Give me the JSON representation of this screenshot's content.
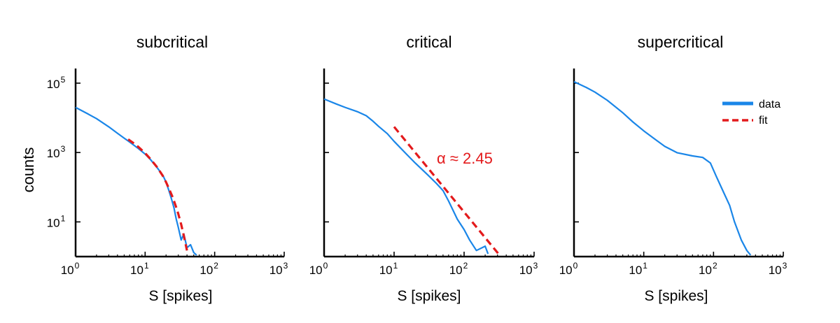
{
  "chart_data": [
    {
      "type": "line",
      "title": "subcritical",
      "xlabel": "S [spikes]",
      "ylabel": "counts",
      "xscale": "log",
      "yscale": "log",
      "xlim": [
        1,
        1000
      ],
      "ylim": [
        1,
        200000
      ],
      "xticks": [
        1,
        10,
        100,
        1000
      ],
      "yticks": [
        10,
        1000,
        100000
      ],
      "grid": false,
      "legend": "none",
      "series": [
        {
          "color": "#1a86e8",
          "style": "solid",
          "x": [
            1,
            1.5,
            2,
            3,
            4,
            5,
            6,
            8,
            10,
            12,
            15,
            18,
            20,
            22,
            24,
            26,
            28,
            30,
            33,
            36,
            40,
            45,
            50,
            55
          ],
          "y": [
            20000,
            13000,
            9500,
            5500,
            3600,
            2600,
            2000,
            1300,
            900,
            620,
            360,
            220,
            140,
            80,
            45,
            25,
            12,
            7,
            3,
            4.5,
            1.8,
            2.2,
            1.3,
            1.1
          ]
        },
        {
          "color": "#e31a1c",
          "style": "dashed",
          "x": [
            5.7,
            7,
            8,
            10,
            12,
            15,
            18,
            20,
            22,
            25,
            28,
            30,
            33,
            36,
            40
          ],
          "y": [
            2400,
            1800,
            1450,
            960,
            640,
            370,
            210,
            140,
            92,
            50,
            26,
            17,
            8.5,
            4,
            1.5
          ]
        }
      ]
    },
    {
      "type": "line",
      "title": "critical",
      "xlabel": "S [spikes]",
      "ylabel": "",
      "xscale": "log",
      "yscale": "log",
      "xlim": [
        1,
        1000
      ],
      "ylim": [
        1,
        200000
      ],
      "xticks": [
        1,
        10,
        100,
        1000
      ],
      "grid": false,
      "legend": "none",
      "annotation": "α ≈ 2.45",
      "series": [
        {
          "color": "#1a86e8",
          "style": "solid",
          "x": [
            1,
            1.5,
            2,
            3,
            4,
            5,
            6,
            8,
            10,
            15,
            20,
            30,
            40,
            50,
            60,
            80,
            100,
            120,
            150,
            200,
            220
          ],
          "y": [
            35000,
            25000,
            20000,
            15000,
            11500,
            8000,
            5700,
            3500,
            2100,
            900,
            500,
            230,
            130,
            80,
            40,
            12,
            6,
            3,
            1.5,
            2,
            1.2
          ]
        },
        {
          "color": "#e31a1c",
          "style": "dashed",
          "x": [
            10,
            310
          ],
          "y": [
            5500,
            1.2
          ]
        }
      ]
    },
    {
      "type": "line",
      "title": "supercritical",
      "xlabel": "S [spikes]",
      "ylabel": "",
      "xscale": "log",
      "yscale": "log",
      "xlim": [
        1,
        1000
      ],
      "ylim": [
        1,
        200000
      ],
      "xticks": [
        1,
        10,
        100,
        1000
      ],
      "grid": false,
      "legend": "top-right",
      "legend_entries": [
        "data",
        "fit"
      ],
      "series": [
        {
          "name": "data",
          "color": "#1a86e8",
          "style": "solid",
          "x": [
            1,
            1.5,
            2,
            3,
            5,
            7,
            10,
            15,
            20,
            30,
            50,
            70,
            90,
            110,
            140,
            170,
            200,
            250,
            300,
            340
          ],
          "y": [
            110000,
            75000,
            55000,
            32000,
            14000,
            7600,
            4200,
            2300,
            1500,
            990,
            800,
            720,
            500,
            200,
            70,
            30,
            10,
            3,
            1.5,
            1.1
          ]
        },
        {
          "name": "fit",
          "color": "#e31a1c",
          "style": "dashed",
          "x": [],
          "y": []
        }
      ]
    }
  ]
}
